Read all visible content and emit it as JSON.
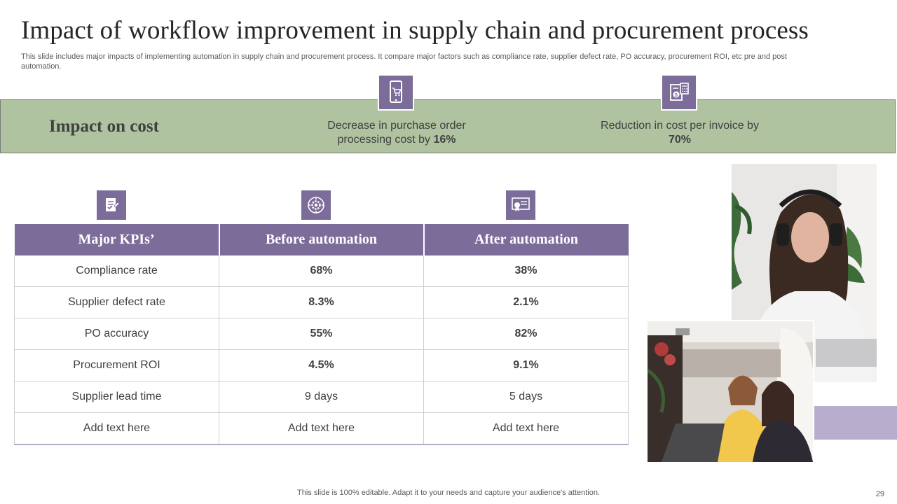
{
  "slide": {
    "title": "Impact of workflow improvement in supply chain and procurement process",
    "subtitle": "This slide includes major impacts of implementing automation in supply chain and procurement process. It compare major factors such as compliance rate, supplier defect rate, PO accuracy, procurement ROI, etc pre and post automation."
  },
  "cost_band": {
    "heading": "Impact on cost",
    "items": [
      {
        "icon": "mobile-cart-icon",
        "text": "Decrease in purchase order processing cost by ",
        "value": "16%"
      },
      {
        "icon": "invoice-calculator-icon",
        "text": "Reduction in cost per invoice by",
        "value": "70%"
      }
    ]
  },
  "table": {
    "header_icons": [
      "checklist-icon",
      "gear-icon",
      "certificate-icon"
    ],
    "headers": [
      "Major KPIs’",
      "Before automation",
      "After automation"
    ],
    "rows": [
      {
        "kpi": "Compliance rate",
        "before": "68%",
        "after": "38%"
      },
      {
        "kpi": "Supplier defect rate",
        "before": "8.3%",
        "after": "2.1%"
      },
      {
        "kpi": "PO accuracy",
        "before": "55%",
        "after": "82%"
      },
      {
        "kpi": "Procurement ROI",
        "before": "4.5%",
        "after": "9.1%"
      },
      {
        "kpi": "Supplier lead time",
        "before": "9 days",
        "after": "5 days"
      },
      {
        "kpi": "Add text here",
        "before": "Add text here",
        "after": "Add text here"
      }
    ]
  },
  "colors": {
    "accent_purple": "#7b6c9a",
    "band_green": "#afc3a0",
    "light_purple": "#b7adcc"
  },
  "footer": {
    "note": "This slide is 100% editable. Adapt it to your needs and capture your audience's attention.",
    "page_number": "29"
  }
}
